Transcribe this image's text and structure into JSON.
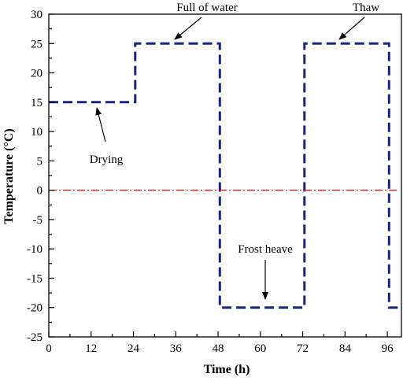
{
  "chart_data": {
    "type": "line",
    "title": "",
    "xlabel": "Time (h)",
    "ylabel": "Temperature (°C)",
    "xlim": [
      0,
      100
    ],
    "ylim": [
      -25,
      30
    ],
    "x_ticks": [
      0,
      12,
      24,
      36,
      48,
      60,
      72,
      84,
      96
    ],
    "y_ticks": [
      30,
      25,
      20,
      15,
      10,
      5,
      0,
      -5,
      -10,
      -15,
      -20,
      -25
    ],
    "grid": false,
    "series": [
      {
        "style": "dashed",
        "color": "#1a237e",
        "points": [
          {
            "x": 0,
            "y": 15
          },
          {
            "x": 24.5,
            "y": 15
          },
          {
            "x": 24.5,
            "y": 25
          },
          {
            "x": 48.5,
            "y": 25
          },
          {
            "x": 48.5,
            "y": -20
          },
          {
            "x": 72.5,
            "y": -20
          },
          {
            "x": 72.5,
            "y": 25
          },
          {
            "x": 96.5,
            "y": 25
          },
          {
            "x": 96.5,
            "y": -20
          },
          {
            "x": 99,
            "y": -20
          }
        ]
      },
      {
        "style": "dash-dot",
        "color": "#ff0000",
        "points": [
          {
            "x": 0,
            "y": 0
          },
          {
            "x": 99,
            "y": 0
          }
        ]
      }
    ],
    "annotations": [
      {
        "text": "Drying",
        "x": 12,
        "y": 15
      },
      {
        "text": "Full of water",
        "x": 36,
        "y": 25
      },
      {
        "text": "Frost heave",
        "x": 60,
        "y": -20
      },
      {
        "text": "Thaw",
        "x": 84,
        "y": 25
      }
    ]
  }
}
